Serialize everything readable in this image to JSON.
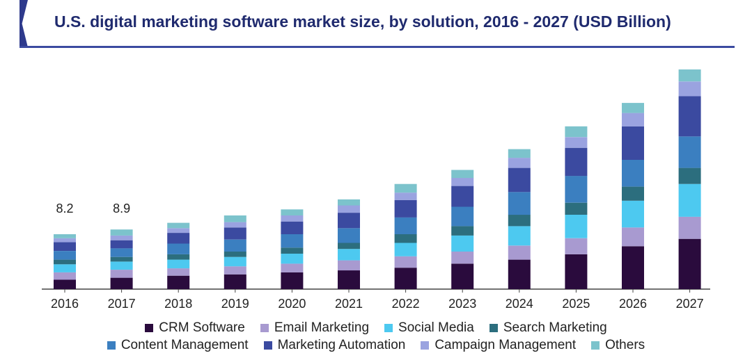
{
  "title": "U.S. digital marketing software market size, by solution, 2016 - 2027 (USD Billion)",
  "chart_data": {
    "type": "bar",
    "stacked": true,
    "categories": [
      "2016",
      "2017",
      "2018",
      "2019",
      "2020",
      "2021",
      "2022",
      "2023",
      "2024",
      "2025",
      "2026",
      "2027"
    ],
    "annotations": [
      {
        "category": "2016",
        "text": "8.2"
      },
      {
        "category": "2017",
        "text": "8.9"
      }
    ],
    "ylim": [
      0,
      33
    ],
    "grid": false,
    "legend_position": "bottom",
    "series": [
      {
        "name": "CRM Software",
        "color": "#2a0b3d",
        "values": [
          1.4,
          1.7,
          2.0,
          2.2,
          2.5,
          2.8,
          3.2,
          3.8,
          4.4,
          5.2,
          6.4,
          7.5
        ]
      },
      {
        "name": "Email Marketing",
        "color": "#a89ad0",
        "values": [
          1.1,
          1.2,
          1.1,
          1.2,
          1.3,
          1.5,
          1.7,
          1.8,
          2.1,
          2.4,
          2.8,
          3.3
        ]
      },
      {
        "name": "Social Media",
        "color": "#4dc9f0",
        "values": [
          1.2,
          1.2,
          1.3,
          1.4,
          1.5,
          1.7,
          2.0,
          2.4,
          2.9,
          3.5,
          4.0,
          4.9
        ]
      },
      {
        "name": "Search Marketing",
        "color": "#2c6e7e",
        "values": [
          0.7,
          0.7,
          0.8,
          0.8,
          0.9,
          0.9,
          1.3,
          1.4,
          1.7,
          1.8,
          2.1,
          2.4
        ]
      },
      {
        "name": "Content Management",
        "color": "#3b7fc0",
        "values": [
          1.3,
          1.3,
          1.6,
          1.8,
          2.0,
          2.2,
          2.5,
          2.9,
          3.4,
          4.0,
          4.0,
          4.7
        ]
      },
      {
        "name": "Marketing Automation",
        "color": "#3b4aa0",
        "values": [
          1.3,
          1.2,
          1.6,
          1.8,
          1.9,
          2.3,
          2.6,
          3.1,
          3.6,
          4.2,
          5.0,
          6.0
        ]
      },
      {
        "name": "Campaign Management",
        "color": "#9aa3e0",
        "values": [
          0.6,
          0.7,
          0.7,
          0.8,
          0.9,
          1.1,
          1.1,
          1.2,
          1.5,
          1.6,
          2.0,
          2.2
        ]
      },
      {
        "name": "Others",
        "color": "#7cc3cc",
        "values": [
          0.6,
          0.9,
          0.8,
          1.0,
          0.9,
          0.9,
          1.3,
          1.2,
          1.3,
          1.6,
          1.5,
          1.8
        ]
      }
    ]
  }
}
